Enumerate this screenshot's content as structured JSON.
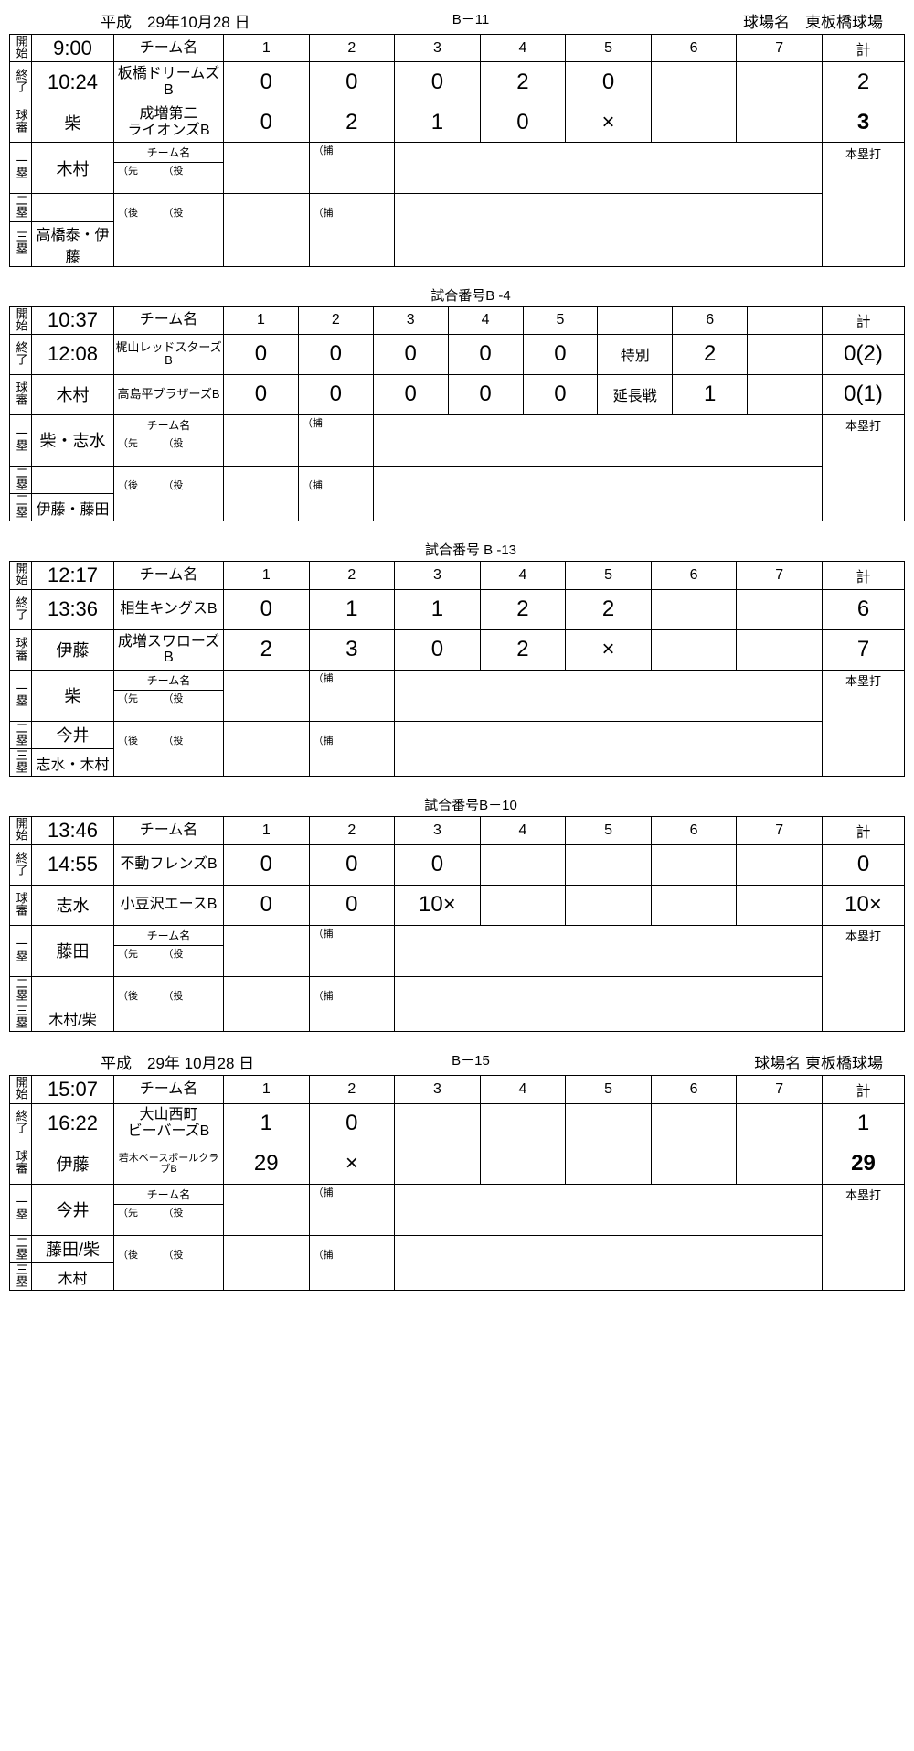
{
  "labels": {
    "start": "開始",
    "end": "終了",
    "ump": "球審",
    "b1": "一塁",
    "b2": "二塁",
    "b3": "三塁",
    "team": "チーム名",
    "total": "計",
    "hr": "本塁打",
    "sen": "（先",
    "to": "（投",
    "ho": "（捕",
    "go": "（後",
    "game_no": "試合番号",
    "field": "球場名"
  },
  "games": [
    {
      "date": "平成　29年10月28 日",
      "code": "B－11",
      "field": "球場名　東板橋球場",
      "start": "9:00",
      "end": "10:24",
      "ump": "柴",
      "u1": "木村",
      "u2": "",
      "u3": "高橋泰・伊藤",
      "cols": [
        "1",
        "2",
        "3",
        "4",
        "5",
        "6",
        "7"
      ],
      "team1": "板橋ドリームズB",
      "s1": [
        "0",
        "0",
        "0",
        "2",
        "0",
        "",
        ""
      ],
      "t1": "2",
      "team2": "成増第二\nライオンズB",
      "s2": [
        "0",
        "2",
        "1",
        "0",
        "×",
        "",
        ""
      ],
      "t2": "3",
      "t2bold": true
    },
    {
      "date": "",
      "code": "試合番号B  -4",
      "field": "",
      "start": "10:37",
      "end": "12:08",
      "ump": "木村",
      "u1": "柴・志水",
      "u2": "",
      "u3": "伊藤・藤田",
      "cols": [
        "1",
        "2",
        "3",
        "4",
        "5",
        "",
        "6",
        ""
      ],
      "team1": "梶山レッドスターズB",
      "s1": [
        "0",
        "0",
        "0",
        "0",
        "0",
        "特別",
        "2",
        ""
      ],
      "t1": "0(2)",
      "team2": "高島平ブラザーズB",
      "s2": [
        "0",
        "0",
        "0",
        "0",
        "0",
        "延長戦",
        "1",
        ""
      ],
      "t2": "0(1)",
      "smallteam": true
    },
    {
      "date": "",
      "code": "試合番号 B -13",
      "field": "",
      "start": "12:17",
      "end": "13:36",
      "ump": "伊藤",
      "u1": "柴",
      "u2": "今井",
      "u3": "志水・木村",
      "cols": [
        "1",
        "2",
        "3",
        "4",
        "5",
        "6",
        "7"
      ],
      "team1": "相生キングスB",
      "s1": [
        "0",
        "1",
        "1",
        "2",
        "2",
        "",
        ""
      ],
      "t1": "6",
      "team2": "成増スワローズB",
      "s2": [
        "2",
        "3",
        "0",
        "2",
        "×",
        "",
        ""
      ],
      "t2": "7"
    },
    {
      "date": "",
      "code": "試合番号B－10",
      "field": "",
      "start": "13:46",
      "end": "14:55",
      "ump": "志水",
      "u1": "藤田",
      "u2": "",
      "u3": "木村/柴",
      "cols": [
        "1",
        "2",
        "3",
        "4",
        "5",
        "6",
        "7"
      ],
      "team1": "不動フレンズB",
      "s1": [
        "0",
        "0",
        "0",
        "",
        "",
        "",
        ""
      ],
      "t1": "0",
      "team2": "小豆沢エースB",
      "s2": [
        "0",
        "0",
        "10×",
        "",
        "",
        "",
        ""
      ],
      "t2": "10×"
    },
    {
      "date": "平成　29年 10月28 日",
      "code": "B－15",
      "field": "球場名 東板橋球場",
      "start": "15:07",
      "end": "16:22",
      "ump": "伊藤",
      "u1": "今井",
      "u2": "藤田/柴",
      "u3": "木村",
      "cols": [
        "1",
        "2",
        "3",
        "4",
        "5",
        "6",
        "7"
      ],
      "team1": "大山西町\nビーバーズB",
      "s1": [
        "1",
        "0",
        "",
        "",
        "",
        "",
        ""
      ],
      "t1": "1",
      "team2": "若木ベースボールクラブB",
      "s2": [
        "29",
        "×",
        "",
        "",
        "",
        "",
        ""
      ],
      "t2": "29",
      "t2bold": true,
      "tinyteam2": true
    }
  ]
}
